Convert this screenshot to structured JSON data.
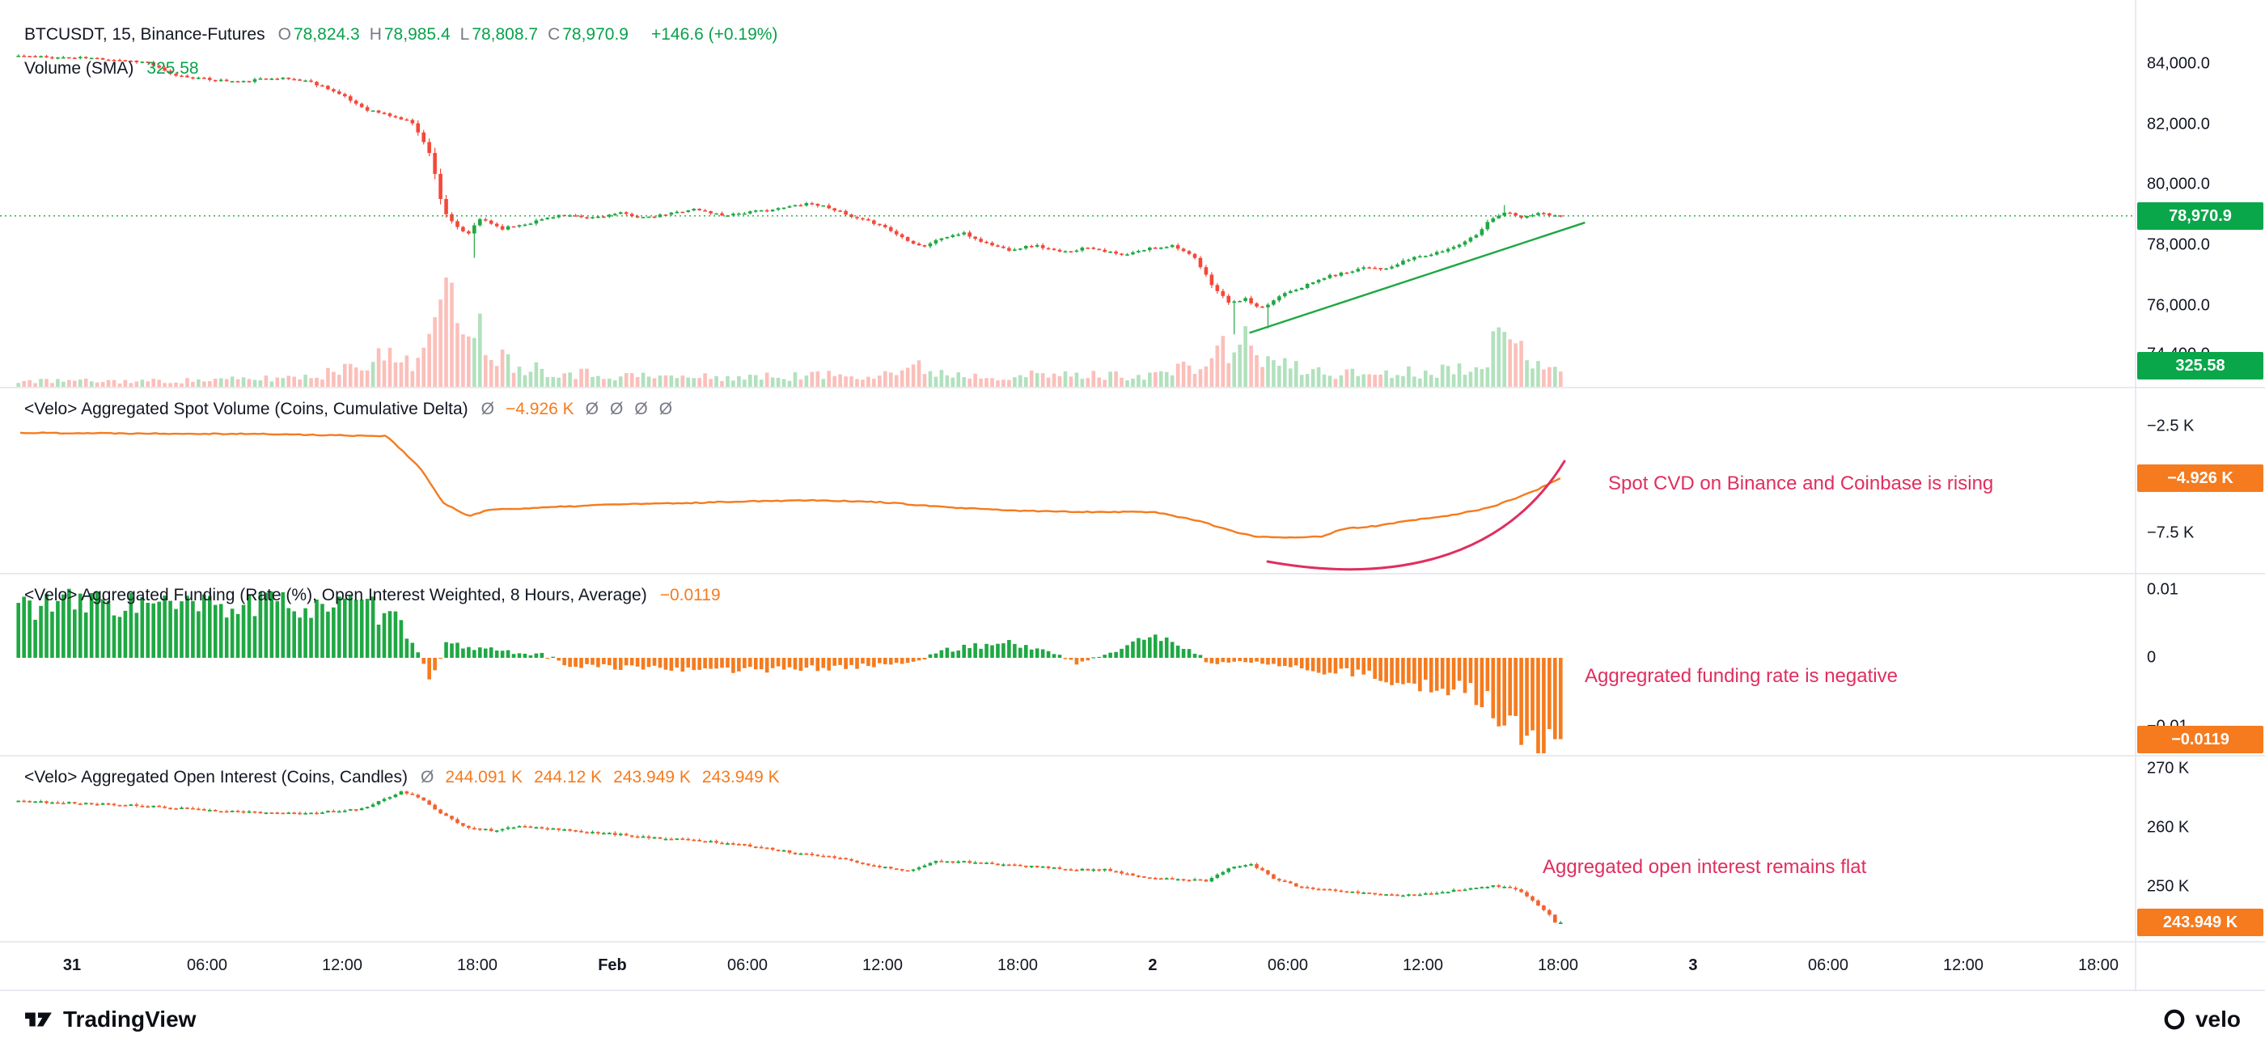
{
  "header": {
    "symbol_title": "BTCUSDT, 15, Binance-Futures",
    "ohlc": [
      {
        "label": "O",
        "value": "78,824.3"
      },
      {
        "label": "H",
        "value": "78,985.4"
      },
      {
        "label": "L",
        "value": "78,808.7"
      },
      {
        "label": "C",
        "value": "78,970.9"
      }
    ],
    "change": "+146.6 (+0.19%)",
    "volume_label": "Volume (SMA)",
    "volume_value": "325.58"
  },
  "panes": {
    "cvd": {
      "title": "<Velo> Aggregated Spot Volume (Coins, Cumulative Delta)",
      "tokens": [
        {
          "text": "Ø",
          "style": "muted"
        },
        {
          "text": "−4.926 K",
          "style": "orange"
        },
        {
          "text": "Ø",
          "style": "muted"
        },
        {
          "text": "Ø",
          "style": "muted"
        },
        {
          "text": "Ø",
          "style": "muted"
        },
        {
          "text": "Ø",
          "style": "muted"
        }
      ]
    },
    "funding": {
      "title": "<Velo> Aggregated Funding (Rate (%), Open Interest Weighted, 8 Hours, Average)",
      "value": "−0.0119"
    },
    "oi": {
      "title": "<Velo> Aggregated Open Interest (Coins, Candles)",
      "tokens": [
        {
          "text": "Ø",
          "style": "muted"
        },
        {
          "text": "244.091 K",
          "style": "orange"
        },
        {
          "text": "244.12 K",
          "style": "orange"
        },
        {
          "text": "243.949 K",
          "style": "orange"
        },
        {
          "text": "243.949 K",
          "style": "orange"
        }
      ]
    }
  },
  "annotations": {
    "cvd": "Spot CVD on Binance and Coinbase is rising",
    "funding": "Aggregrated funding rate is negative",
    "oi": "Aggregated open interest remains flat"
  },
  "badges": {
    "price": "78,970.9",
    "volume": "325.58",
    "cvd": "−4.926 K",
    "funding": "−0.0119",
    "oi": "243.949 K"
  },
  "time_axis": {
    "labels": [
      {
        "text": "31",
        "h": 0,
        "bold": true
      },
      {
        "text": "06:00",
        "h": 6
      },
      {
        "text": "12:00",
        "h": 12
      },
      {
        "text": "18:00",
        "h": 18
      },
      {
        "text": "Feb",
        "h": 24,
        "bold": true
      },
      {
        "text": "06:00",
        "h": 30
      },
      {
        "text": "12:00",
        "h": 36
      },
      {
        "text": "18:00",
        "h": 42
      },
      {
        "text": "2",
        "h": 48,
        "bold": true
      },
      {
        "text": "06:00",
        "h": 54
      },
      {
        "text": "12:00",
        "h": 60
      },
      {
        "text": "18:00",
        "h": 66
      },
      {
        "text": "3",
        "h": 72,
        "bold": true
      },
      {
        "text": "06:00",
        "h": 78
      },
      {
        "text": "12:00",
        "h": 84
      },
      {
        "text": "18:00",
        "h": 90
      }
    ]
  },
  "footer": {
    "tradingview": "TradingView",
    "velo": "velo"
  },
  "colors": {
    "up": "#1fa843",
    "down": "#f4483a",
    "orange": "#f57b1e",
    "oi_down": "#f4612e",
    "annotation": "#df2f5f",
    "trendline": "#1fa843",
    "grid": "#e0e3eb",
    "badge_green": "#0aa64a",
    "badge_orange": "#f57b1e",
    "text_green": "#07a24b",
    "muted": "#787b86",
    "ink": "#131722"
  },
  "chart_data": [
    {
      "type": "candlestick",
      "name": "BTCUSDT 15m, Binance-Futures",
      "open": 78824.3,
      "high": 78985.4,
      "low": 78808.7,
      "close": 78970.9,
      "change": 146.6,
      "change_pct": 0.19,
      "last_price": 78970.9,
      "x_unit": "hours since Jan 31 00:00",
      "candle_interval_hours": 0.25,
      "x_data_range": [
        -2.5,
        66
      ],
      "y_ticks": [
        {
          "label": "84,000.0",
          "value": 84000
        },
        {
          "label": "82,000.0",
          "value": 82000
        },
        {
          "label": "80,000.0",
          "value": 80000
        },
        {
          "label": "78,000.0",
          "value": 78000
        },
        {
          "label": "76,000.0",
          "value": 76000
        },
        {
          "label": "74,400.0",
          "value": 74400
        }
      ],
      "price_path_anchors": [
        [
          -2.5,
          84280
        ],
        [
          -1,
          84220
        ],
        [
          0.6,
          84200
        ],
        [
          2,
          84150
        ],
        [
          3.5,
          84050
        ],
        [
          4.5,
          83650
        ],
        [
          6,
          83500
        ],
        [
          7.7,
          83400
        ],
        [
          9,
          83550
        ],
        [
          10.5,
          83450
        ],
        [
          11.5,
          83200
        ],
        [
          13.2,
          82500
        ],
        [
          14.2,
          82300
        ],
        [
          15.3,
          82050
        ],
        [
          16.1,
          80900
        ],
        [
          16.6,
          79200
        ],
        [
          17.1,
          78650
        ],
        [
          17.7,
          78350
        ],
        [
          18.3,
          78900
        ],
        [
          19.2,
          78550
        ],
        [
          20.5,
          78750
        ],
        [
          21.7,
          79000
        ],
        [
          23,
          78900
        ],
        [
          24.5,
          79050
        ],
        [
          25.7,
          78900
        ],
        [
          27.7,
          79200
        ],
        [
          29,
          79000
        ],
        [
          30.3,
          79100
        ],
        [
          31.5,
          79200
        ],
        [
          32.8,
          79400
        ],
        [
          33.8,
          79250
        ],
        [
          34.8,
          78900
        ],
        [
          36,
          78700
        ],
        [
          36.9,
          78300
        ],
        [
          37.9,
          77950
        ],
        [
          38.8,
          78250
        ],
        [
          39.7,
          78400
        ],
        [
          40.6,
          78100
        ],
        [
          41.7,
          77850
        ],
        [
          42.9,
          78000
        ],
        [
          44.1,
          77750
        ],
        [
          45.3,
          77950
        ],
        [
          46.8,
          77650
        ],
        [
          48,
          77900
        ],
        [
          49.1,
          78000
        ],
        [
          50,
          77550
        ],
        [
          50.9,
          76550
        ],
        [
          51.6,
          76050
        ],
        [
          52.2,
          76250
        ],
        [
          52.9,
          75850
        ],
        [
          54,
          76450
        ],
        [
          54.9,
          76650
        ],
        [
          55.8,
          76950
        ],
        [
          56.7,
          77100
        ],
        [
          57.6,
          77300
        ],
        [
          58.5,
          77200
        ],
        [
          59.7,
          77600
        ],
        [
          60.6,
          77700
        ],
        [
          61.5,
          77950
        ],
        [
          62.4,
          78300
        ],
        [
          63.2,
          78900
        ],
        [
          63.8,
          79100
        ],
        [
          64.5,
          78900
        ],
        [
          65.2,
          79050
        ],
        [
          66,
          78970.9
        ]
      ],
      "spike_lows": [
        [
          17.7,
          77580
        ],
        [
          51.6,
          75050
        ],
        [
          52.9,
          75250
        ]
      ],
      "spike_highs": [
        [
          63.5,
          79330
        ]
      ],
      "volume_sma": 325.58,
      "volume_envelope_anchors": [
        [
          -2.5,
          0.06
        ],
        [
          4,
          0.06
        ],
        [
          8,
          0.08
        ],
        [
          11,
          0.12
        ],
        [
          12.5,
          0.28
        ],
        [
          13.8,
          0.3
        ],
        [
          15,
          0.3
        ],
        [
          15.8,
          0.45
        ],
        [
          16.4,
          0.95
        ],
        [
          16.9,
          1.0
        ],
        [
          17.5,
          0.8
        ],
        [
          18.2,
          0.5
        ],
        [
          19,
          0.3
        ],
        [
          20,
          0.22
        ],
        [
          22,
          0.15
        ],
        [
          24,
          0.12
        ],
        [
          27,
          0.1
        ],
        [
          30,
          0.1
        ],
        [
          33,
          0.12
        ],
        [
          35,
          0.13
        ],
        [
          36.5,
          0.16
        ],
        [
          37.5,
          0.2
        ],
        [
          38.5,
          0.15
        ],
        [
          40,
          0.12
        ],
        [
          42,
          0.12
        ],
        [
          44,
          0.12
        ],
        [
          46,
          0.12
        ],
        [
          48,
          0.13
        ],
        [
          50,
          0.22
        ],
        [
          51,
          0.38
        ],
        [
          51.8,
          0.5
        ],
        [
          52.6,
          0.32
        ],
        [
          54,
          0.2
        ],
        [
          56,
          0.14
        ],
        [
          58,
          0.14
        ],
        [
          60,
          0.16
        ],
        [
          61.5,
          0.2
        ],
        [
          62.5,
          0.32
        ],
        [
          63.3,
          0.48
        ],
        [
          64,
          0.42
        ],
        [
          64.8,
          0.32
        ],
        [
          65.5,
          0.26
        ],
        [
          66,
          0.2
        ]
      ],
      "trendline": {
        "from": [
          52.3,
          75100
        ],
        "to": [
          67.2,
          78750
        ]
      }
    },
    {
      "type": "line",
      "name": "Aggregated Spot Volume (Coins, Cumulative Delta)",
      "unit": "K",
      "last_value": -4.926,
      "y_ticks": [
        {
          "label": "−2.5 K",
          "value": -2.5
        },
        {
          "label": "−7.5 K",
          "value": -7.5
        }
      ],
      "anchors": [
        [
          -2.3,
          -2.8
        ],
        [
          8,
          -2.85
        ],
        [
          14,
          -2.95
        ],
        [
          15.5,
          -4.5
        ],
        [
          16.5,
          -6.1
        ],
        [
          17.6,
          -6.7
        ],
        [
          18.5,
          -6.4
        ],
        [
          21,
          -6.3
        ],
        [
          24,
          -6.15
        ],
        [
          27,
          -6.1
        ],
        [
          30,
          -6.0
        ],
        [
          33,
          -5.95
        ],
        [
          36,
          -6.05
        ],
        [
          39,
          -6.3
        ],
        [
          42,
          -6.45
        ],
        [
          45,
          -6.5
        ],
        [
          48,
          -6.5
        ],
        [
          50,
          -6.9
        ],
        [
          51.5,
          -7.4
        ],
        [
          52.5,
          -7.65
        ],
        [
          54,
          -7.7
        ],
        [
          55.5,
          -7.65
        ],
        [
          56.5,
          -7.3
        ],
        [
          58,
          -7.15
        ],
        [
          59.5,
          -6.9
        ],
        [
          61,
          -6.7
        ],
        [
          62,
          -6.5
        ],
        [
          63,
          -6.3
        ],
        [
          64,
          -5.9
        ],
        [
          65,
          -5.5
        ],
        [
          65.6,
          -5.2
        ],
        [
          66.1,
          -4.926
        ]
      ]
    },
    {
      "type": "bar",
      "name": "Aggregated Funding (Rate (%), Open Interest Weighted, 8 Hours, Average)",
      "last_value": -0.0119,
      "y_ticks": [
        {
          "label": "0.01",
          "value": 0.01
        },
        {
          "label": "0",
          "value": 0
        },
        {
          "label": "−0.01",
          "value": -0.01
        }
      ],
      "envelope_anchors": [
        [
          -2.5,
          0.0078
        ],
        [
          2,
          0.008
        ],
        [
          5,
          0.0074
        ],
        [
          8,
          0.0077
        ],
        [
          11,
          0.0079
        ],
        [
          13,
          0.0072
        ],
        [
          14,
          0.006
        ],
        [
          15,
          0.003
        ],
        [
          15.8,
          -0.003
        ],
        [
          16.5,
          0.0018
        ],
        [
          18,
          0.0015
        ],
        [
          19.5,
          0.0008
        ],
        [
          21,
          0.0002
        ],
        [
          22,
          -0.0012
        ],
        [
          26,
          -0.0015
        ],
        [
          30,
          -0.0018
        ],
        [
          34,
          -0.0014
        ],
        [
          37,
          -0.0008
        ],
        [
          38.5,
          0.001
        ],
        [
          40,
          0.0018
        ],
        [
          41.5,
          0.0022
        ],
        [
          43,
          0.0012
        ],
        [
          44.5,
          -0.0008
        ],
        [
          46,
          0.0006
        ],
        [
          47,
          0.0025
        ],
        [
          48.5,
          0.0028
        ],
        [
          49.5,
          0.0012
        ],
        [
          50.5,
          -0.0008
        ],
        [
          52,
          -0.0006
        ],
        [
          53.5,
          -0.001
        ],
        [
          55,
          -0.0018
        ],
        [
          57,
          -0.0022
        ],
        [
          58.5,
          -0.0035
        ],
        [
          60,
          -0.004
        ],
        [
          61.5,
          -0.0045
        ],
        [
          62.5,
          -0.006
        ],
        [
          63.5,
          -0.0085
        ],
        [
          64.5,
          -0.0105
        ],
        [
          65.5,
          -0.0118
        ],
        [
          66.1,
          -0.0119
        ]
      ]
    },
    {
      "type": "candlestick",
      "name": "Aggregated Open Interest (Coins, Candles)",
      "unit": "K",
      "last_value": 243.949,
      "stats": [
        244.091,
        244.12,
        243.949,
        243.949
      ],
      "y_ticks": [
        {
          "label": "270 K",
          "value": 270
        },
        {
          "label": "260 K",
          "value": 260
        },
        {
          "label": "250 K",
          "value": 250
        }
      ],
      "anchors": [
        [
          -2.5,
          264.5
        ],
        [
          0,
          264.2
        ],
        [
          3,
          263.8
        ],
        [
          7,
          262.8
        ],
        [
          10.5,
          262.4
        ],
        [
          13,
          263.2
        ],
        [
          14.8,
          266.1
        ],
        [
          15.6,
          265.1
        ],
        [
          16.2,
          263.2
        ],
        [
          17.5,
          260.2
        ],
        [
          18.8,
          259.5
        ],
        [
          20,
          260.2
        ],
        [
          21.5,
          259.8
        ],
        [
          24,
          259.0
        ],
        [
          26,
          258.3
        ],
        [
          28,
          257.8
        ],
        [
          30,
          257.1
        ],
        [
          32,
          255.9
        ],
        [
          33.8,
          255.1
        ],
        [
          36,
          253.4
        ],
        [
          37.3,
          252.7
        ],
        [
          38.5,
          254.4
        ],
        [
          40,
          254.2
        ],
        [
          41.5,
          253.7
        ],
        [
          43,
          253.4
        ],
        [
          44.5,
          252.9
        ],
        [
          46,
          252.9
        ],
        [
          47.5,
          251.7
        ],
        [
          49,
          251.4
        ],
        [
          50.5,
          251.0
        ],
        [
          51.7,
          253.4
        ],
        [
          52.5,
          253.9
        ],
        [
          53.5,
          251.5
        ],
        [
          54.8,
          249.8
        ],
        [
          56,
          249.4
        ],
        [
          57.5,
          248.9
        ],
        [
          59,
          248.6
        ],
        [
          60.5,
          248.9
        ],
        [
          62,
          249.6
        ],
        [
          63.3,
          250.2
        ],
        [
          64.3,
          249.6
        ],
        [
          64.9,
          248.0
        ],
        [
          65.5,
          246.1
        ],
        [
          65.9,
          244.8
        ],
        [
          66.1,
          243.949
        ]
      ]
    }
  ]
}
